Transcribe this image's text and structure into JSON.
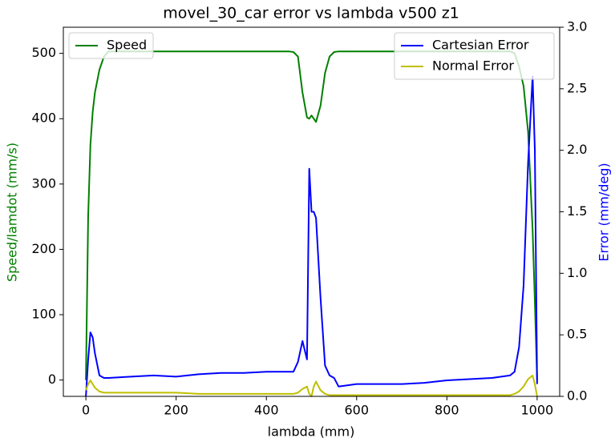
{
  "chart_data": {
    "type": "line",
    "title": "movel_30_car error vs lambda v500 z1",
    "xlabel": "lambda (mm)",
    "ylabel": "Speed/lamdot (mm/s)",
    "y2label": "Error (mm/deg)",
    "ylabel_color": "#008000",
    "y2label_color": "#0000ff",
    "x": [
      0,
      5,
      10,
      15,
      20,
      30,
      40,
      50,
      100,
      150,
      200,
      250,
      300,
      350,
      400,
      450,
      460,
      470,
      480,
      490,
      495,
      500,
      505,
      510,
      520,
      530,
      540,
      550,
      560,
      600,
      650,
      700,
      750,
      800,
      850,
      900,
      940,
      950,
      960,
      970,
      980,
      990,
      995,
      1000
    ],
    "series": [
      {
        "name": "Speed",
        "color": "#008000",
        "axis": "y",
        "values": [
          0,
          250,
          360,
          410,
          440,
          475,
          495,
          503,
          503,
          503,
          503,
          503,
          503,
          503,
          503,
          503,
          502,
          495,
          440,
          402,
          400,
          405,
          400,
          395,
          420,
          470,
          495,
          502,
          503,
          503,
          503,
          503,
          503,
          503,
          503,
          503,
          503,
          500,
          480,
          450,
          380,
          230,
          120,
          0
        ]
      },
      {
        "name": "Cartesian Error",
        "color": "#0000ff",
        "axis": "y2",
        "values": [
          0,
          0.3,
          0.52,
          0.48,
          0.35,
          0.17,
          0.15,
          0.15,
          0.16,
          0.17,
          0.16,
          0.18,
          0.19,
          0.19,
          0.2,
          0.2,
          0.2,
          0.28,
          0.45,
          0.3,
          1.85,
          1.5,
          1.5,
          1.45,
          0.8,
          0.25,
          0.17,
          0.15,
          0.08,
          0.1,
          0.1,
          0.1,
          0.11,
          0.13,
          0.14,
          0.15,
          0.17,
          0.2,
          0.4,
          0.9,
          1.9,
          2.6,
          2.0,
          0.1
        ]
      },
      {
        "name": "Normal Error",
        "color": "#bfbf00",
        "axis": "y2",
        "values": [
          0.05,
          0.1,
          0.13,
          0.1,
          0.07,
          0.04,
          0.03,
          0.03,
          0.03,
          0.03,
          0.03,
          0.02,
          0.02,
          0.02,
          0.02,
          0.02,
          0.02,
          0.03,
          0.06,
          0.08,
          0.02,
          0.0,
          0.08,
          0.12,
          0.05,
          0.02,
          0.01,
          0.01,
          0.01,
          0.01,
          0.01,
          0.01,
          0.01,
          0.01,
          0.01,
          0.01,
          0.01,
          0.02,
          0.04,
          0.08,
          0.14,
          0.17,
          0.1,
          0.0
        ]
      }
    ],
    "xlim": [
      -50,
      1050
    ],
    "xticks": [
      0,
      200,
      400,
      600,
      800,
      1000
    ],
    "ylim": [
      -25,
      540
    ],
    "yticks": [
      0,
      100,
      200,
      300,
      400,
      500
    ],
    "y2lim": [
      0,
      3
    ],
    "y2ticks": [
      {
        "value": 0,
        "label": "0.0"
      },
      {
        "value": 0.5,
        "label": "0.5"
      },
      {
        "value": 1,
        "label": "1.0"
      },
      {
        "value": 1.5,
        "label": "1.5"
      },
      {
        "value": 2,
        "label": "2.0"
      },
      {
        "value": 2.5,
        "label": "2.5"
      },
      {
        "value": 3,
        "label": "3.0"
      }
    ],
    "legend_y": "upper left",
    "legend_y2": "upper right"
  }
}
